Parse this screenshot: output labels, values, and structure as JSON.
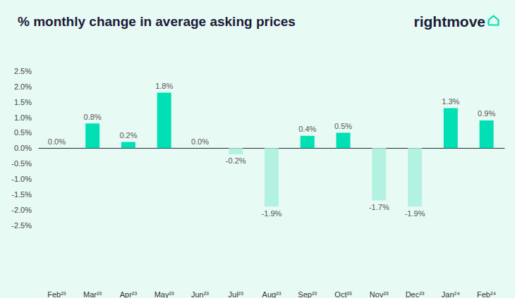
{
  "chart_data": {
    "type": "bar",
    "title": "% monthly change in average asking prices",
    "annotation": "rightmove",
    "categories": [
      "Feb²³",
      "Mar²³",
      "Apr²³",
      "May²³",
      "Jun²³",
      "Jul²³",
      "Aug²³",
      "Sep²³",
      "Oct²³",
      "Nov²³",
      "Dec²³",
      "Jan²⁴",
      "Feb²⁴"
    ],
    "values": [
      0.0,
      0.8,
      0.2,
      1.8,
      0.0,
      -0.2,
      -1.9,
      0.4,
      0.5,
      -1.7,
      -1.9,
      1.3,
      0.9
    ],
    "value_labels": [
      "0.0%",
      "0.8%",
      "0.2%",
      "1.8%",
      "0.0%",
      "-0.2%",
      "-1.9%",
      "0.4%",
      "0.5%",
      "-1.7%",
      "-1.9%",
      "1.3%",
      "0.9%"
    ],
    "colors": [
      "#00e0b4",
      "#00e0b4",
      "#00e0b4",
      "#00e0b4",
      "#00e0b4",
      "#b3f2e1",
      "#b3f2e1",
      "#00e0b4",
      "#00e0b4",
      "#b3f2e1",
      "#b3f2e1",
      "#00e0b4",
      "#00e0b4"
    ],
    "ylim": [
      -2.5,
      2.5
    ],
    "yticks": [
      {
        "value": -2.5,
        "label": "-2.5%"
      },
      {
        "value": -2.0,
        "label": "-2.0%"
      },
      {
        "value": -1.5,
        "label": "-1.5%"
      },
      {
        "value": -1.0,
        "label": "-1.0%"
      },
      {
        "value": -0.5,
        "label": "-0.5%"
      },
      {
        "value": 0.0,
        "label": "0.0%"
      },
      {
        "value": 0.5,
        "label": "0.5%"
      },
      {
        "value": 1.0,
        "label": "1.0%"
      },
      {
        "value": 1.5,
        "label": "1.5%"
      },
      {
        "value": 2.0,
        "label": "2.0%"
      },
      {
        "value": 2.5,
        "label": "2.5%"
      }
    ],
    "grid": false,
    "data_labels": true
  }
}
